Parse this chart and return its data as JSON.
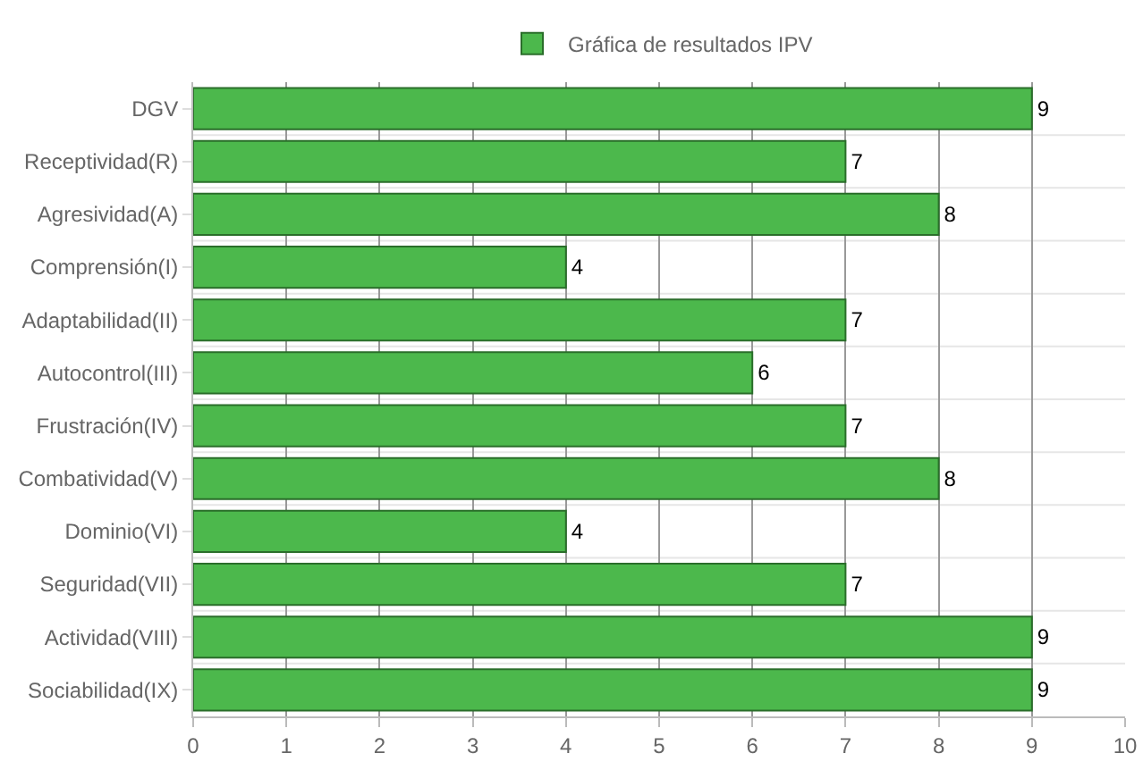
{
  "chart_data": {
    "type": "bar",
    "orientation": "horizontal",
    "categories": [
      "DGV",
      "Receptividad(R)",
      "Agresividad(A)",
      "Comprensión(I)",
      "Adaptabilidad(II)",
      "Autocontrol(III)",
      "Frustración(IV)",
      "Combatividad(V)",
      "Dominio(VI)",
      "Seguridad(VII)",
      "Actividad(VIII)",
      "Sociabilidad(IX)"
    ],
    "series": [
      {
        "name": "Gráfica de resultados IPV",
        "color": "#4cb84c",
        "values": [
          9,
          7,
          8,
          4,
          7,
          6,
          7,
          8,
          4,
          7,
          9,
          9
        ]
      }
    ],
    "xlim": [
      0,
      10
    ],
    "xticks": [
      0,
      1,
      2,
      3,
      4,
      5,
      6,
      7,
      8,
      9,
      10
    ],
    "grid": true,
    "legend": "top",
    "data_labels": true
  }
}
